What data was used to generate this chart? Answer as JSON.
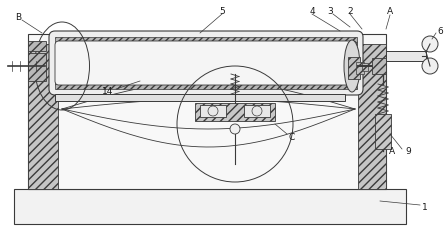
{
  "bg_color": "#ffffff",
  "lc": "#3a3a3a",
  "figsize": [
    4.44,
    2.3
  ],
  "dpi": 100,
  "fs": 6.5,
  "xlim": [
    0,
    444
  ],
  "ylim": [
    0,
    230
  ]
}
